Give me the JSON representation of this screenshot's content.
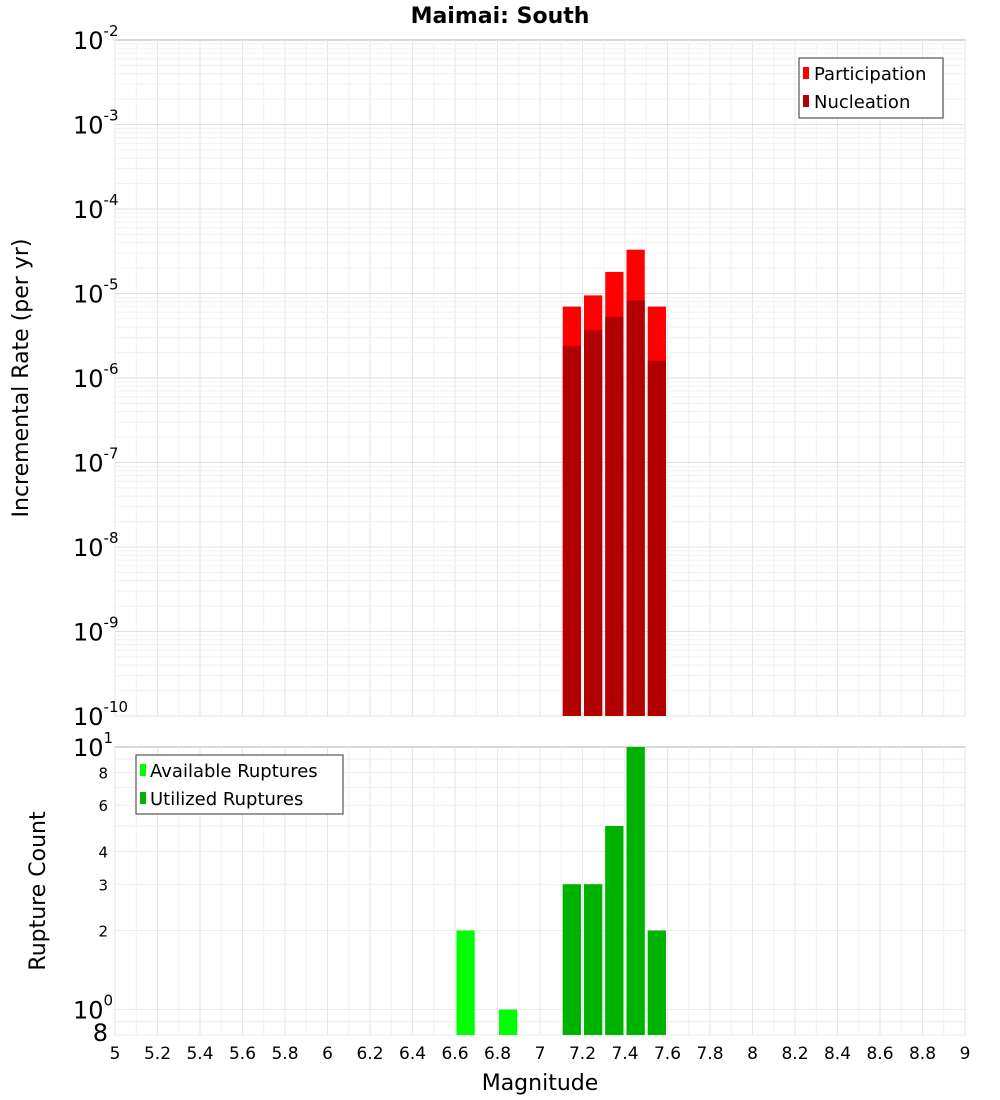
{
  "chart_data": [
    {
      "type": "bar",
      "title": "Maimai: South",
      "xlabel": "Magnitude",
      "ylabel": "Incremental Rate (per yr)",
      "yscale": "log",
      "ylim": [
        1e-10,
        0.01
      ],
      "xlim": [
        5,
        9
      ],
      "bar_width": 0.1,
      "legend": {
        "placement": "top-right",
        "items": [
          "Participation",
          "Nucleation"
        ]
      },
      "series": [
        {
          "name": "Participation",
          "color": "#ff0000",
          "x": [
            7.15,
            7.25,
            7.35,
            7.45,
            7.55
          ],
          "values": [
            7e-06,
            9.5e-06,
            1.8e-05,
            3.3e-05,
            7e-06
          ]
        },
        {
          "name": "Nucleation",
          "color": "#b20000",
          "x": [
            7.15,
            7.25,
            7.35,
            7.45,
            7.55
          ],
          "values": [
            2.4e-06,
            3.7e-06,
            5.3e-06,
            8.3e-06,
            1.6e-06
          ]
        }
      ],
      "y_ticks": [
        {
          "base": "10",
          "exp": "-2"
        },
        {
          "base": "10",
          "exp": "-3"
        },
        {
          "base": "10",
          "exp": "-4"
        },
        {
          "base": "10",
          "exp": "-5"
        },
        {
          "base": "10",
          "exp": "-6"
        },
        {
          "base": "10",
          "exp": "-7"
        },
        {
          "base": "10",
          "exp": "-8"
        },
        {
          "base": "10",
          "exp": "-9"
        },
        {
          "base": "10",
          "exp": "-10"
        }
      ]
    },
    {
      "type": "bar",
      "title": "",
      "xlabel": "Magnitude",
      "ylabel": "Rupture Count",
      "yscale": "log",
      "ylim": [
        0.8,
        10
      ],
      "xlim": [
        5,
        9
      ],
      "bar_width": 0.1,
      "legend": {
        "placement": "top-left",
        "items": [
          "Available Ruptures",
          "Utilized Ruptures"
        ]
      },
      "series": [
        {
          "name": "Available Ruptures",
          "color": "#00ff00",
          "x": [
            6.65,
            6.85,
            7.15,
            7.25,
            7.35,
            7.45,
            7.55
          ],
          "values": [
            2,
            1,
            3,
            3,
            5,
            10,
            2
          ]
        },
        {
          "name": "Utilized Ruptures",
          "color": "#00b200",
          "x": [
            7.15,
            7.25,
            7.35,
            7.45,
            7.55
          ],
          "values": [
            3,
            3,
            5,
            10,
            2
          ]
        }
      ],
      "y_major_ticks": [
        {
          "base": "10",
          "exp": "1",
          "value": 10
        },
        {
          "base": "10",
          "exp": "0",
          "value": 1
        }
      ],
      "y_minor_labels": [
        "8",
        "6",
        "4",
        "3",
        "2",
        "8"
      ],
      "x_tick_labels": [
        "5",
        "5.2",
        "5.4",
        "5.6",
        "5.8",
        "6",
        "6.2",
        "6.4",
        "6.6",
        "6.8",
        "7",
        "7.2",
        "7.4",
        "7.6",
        "7.8",
        "8",
        "8.2",
        "8.4",
        "8.6",
        "8.8",
        "9"
      ]
    }
  ]
}
